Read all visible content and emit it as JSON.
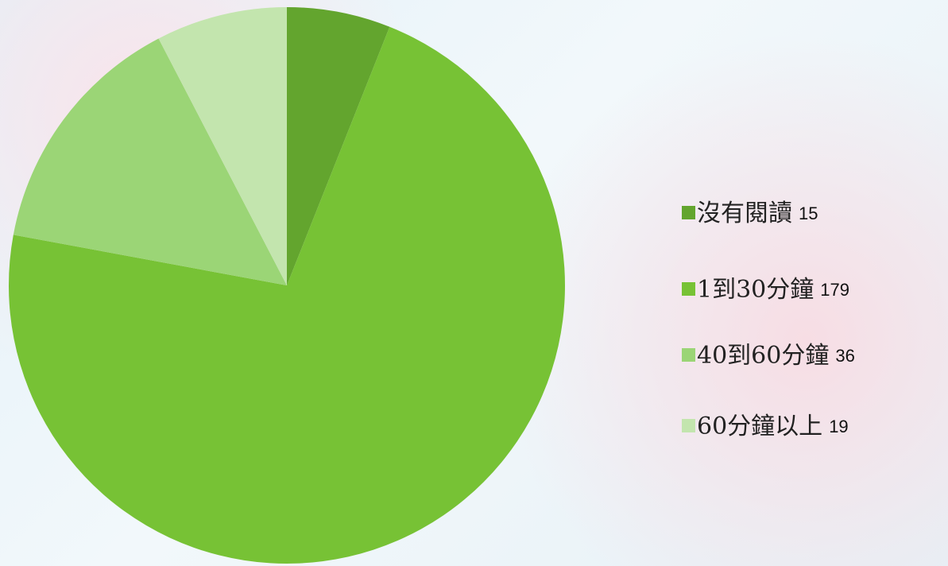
{
  "chart_data": {
    "type": "pie",
    "categories": [
      "沒有閱讀",
      "1到30分鐘",
      "40到60分鐘",
      "60分鐘以上"
    ],
    "values": [
      15,
      179,
      36,
      19
    ],
    "colors": [
      "#63a52e",
      "#77c235",
      "#9bd576",
      "#c3e5ae"
    ],
    "legend": "right"
  }
}
